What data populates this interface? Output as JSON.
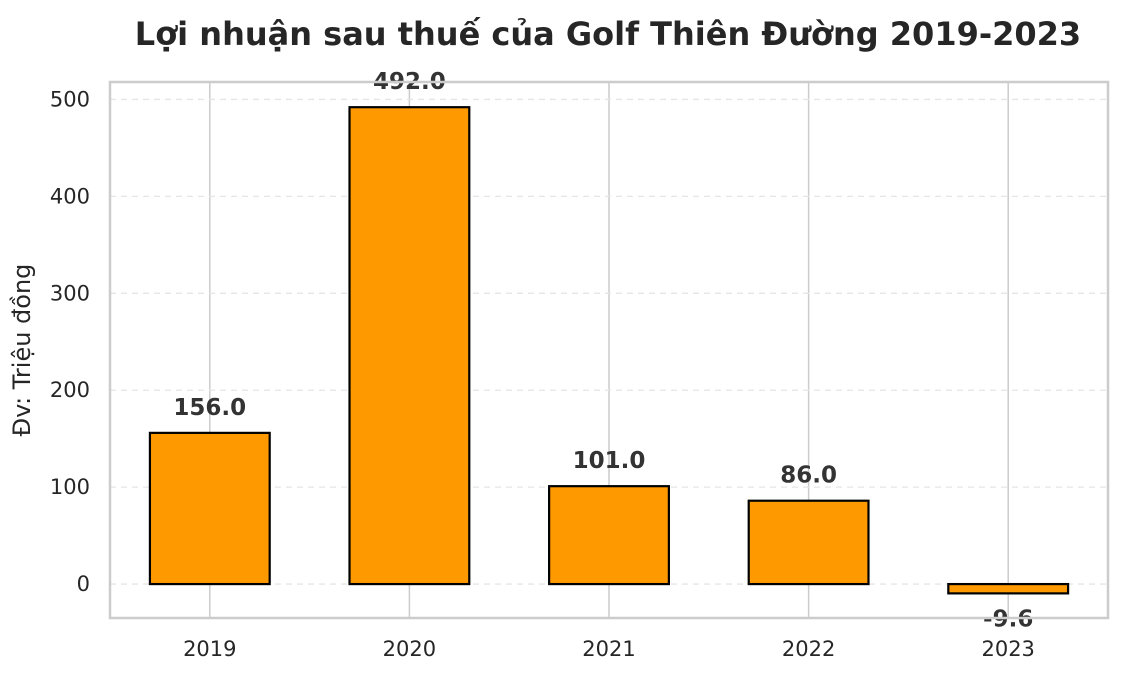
{
  "chart_data": {
    "type": "bar",
    "title": "Lợi nhuận sau thuế của Golf Thiên Đường 2019-2023",
    "xlabel": "",
    "ylabel": "Đv: Triệu đồng",
    "categories": [
      "2019",
      "2020",
      "2021",
      "2022",
      "2023"
    ],
    "values": [
      156.0,
      492.0,
      101.0,
      86.0,
      -9.6
    ],
    "value_labels": [
      "156.0",
      "492.0",
      "101.0",
      "86.0",
      "-9.6"
    ],
    "ylim": [
      -35,
      518
    ],
    "yticks": [
      0,
      100,
      200,
      300,
      400,
      500
    ],
    "grid": true,
    "legend": "none",
    "bar_color": "#FF9900",
    "bar_edge_color": "#000000",
    "grid_color": "#E5E5E5",
    "frame_color": "#CCCCCC"
  }
}
